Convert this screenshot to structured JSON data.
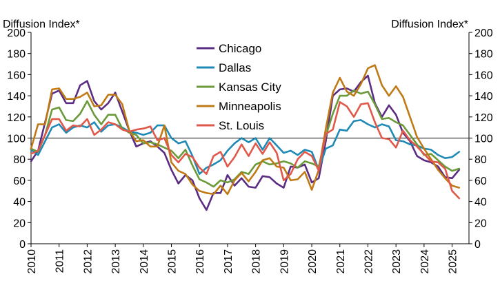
{
  "chart_data": {
    "type": "line",
    "title": "",
    "ylabel_left": "Diffusion Index*",
    "ylabel_right": "Diffusion Index*",
    "ylim": [
      0,
      200
    ],
    "yticks": [
      0,
      20,
      40,
      60,
      80,
      100,
      120,
      140,
      160,
      180,
      200
    ],
    "xlim": [
      2010,
      2025.6
    ],
    "xticks": [
      "2010",
      "2011",
      "2012",
      "2013",
      "2014",
      "2015",
      "2016",
      "2017",
      "2018",
      "2019",
      "2020",
      "2021",
      "2022",
      "2023",
      "2024",
      "2025"
    ],
    "reference_line": 100,
    "legend_position": "top-center",
    "series": [
      {
        "name": "Chicago",
        "color": "#5b2c83",
        "x": [
          2010.0,
          2010.25,
          2010.5,
          2010.75,
          2011.0,
          2011.25,
          2011.5,
          2011.75,
          2012.0,
          2012.25,
          2012.5,
          2012.75,
          2013.0,
          2013.25,
          2013.5,
          2013.75,
          2014.0,
          2014.25,
          2014.5,
          2014.75,
          2015.0,
          2015.25,
          2015.5,
          2015.75,
          2016.0,
          2016.25,
          2016.5,
          2016.75,
          2017.0,
          2017.25,
          2017.5,
          2017.75,
          2018.0,
          2018.25,
          2018.5,
          2018.75,
          2019.0,
          2019.25,
          2019.5,
          2019.75,
          2020.0,
          2020.25,
          2020.5,
          2020.75,
          2021.0,
          2021.25,
          2021.5,
          2021.75,
          2022.0,
          2022.25,
          2022.5,
          2022.75,
          2023.0,
          2023.25,
          2023.5,
          2023.75,
          2024.0,
          2024.25,
          2024.5,
          2024.75,
          2025.0,
          2025.25
        ],
        "values": [
          78,
          88,
          115,
          142,
          145,
          133,
          133,
          150,
          154,
          135,
          127,
          133,
          143,
          125,
          107,
          92,
          95,
          97,
          92,
          86,
          70,
          57,
          65,
          60,
          43,
          32,
          48,
          48,
          65,
          55,
          62,
          54,
          53,
          64,
          63,
          57,
          53,
          73,
          72,
          75,
          58,
          62,
          97,
          140,
          146,
          147,
          144,
          153,
          159,
          133,
          120,
          131,
          122,
          105,
          97,
          83,
          79,
          77,
          73,
          63,
          62,
          70
        ]
      },
      {
        "name": "Dallas",
        "color": "#1f8ab6",
        "x": [
          2010.0,
          2010.25,
          2010.5,
          2010.75,
          2011.0,
          2011.25,
          2011.5,
          2011.75,
          2012.0,
          2012.25,
          2012.5,
          2012.75,
          2013.0,
          2013.25,
          2013.5,
          2013.75,
          2014.0,
          2014.25,
          2014.5,
          2014.75,
          2015.0,
          2015.25,
          2015.5,
          2015.75,
          2016.0,
          2016.25,
          2016.5,
          2016.75,
          2017.0,
          2017.25,
          2017.5,
          2017.75,
          2018.0,
          2018.25,
          2018.5,
          2018.75,
          2019.0,
          2019.25,
          2019.5,
          2019.75,
          2020.0,
          2020.25,
          2020.5,
          2020.75,
          2021.0,
          2021.25,
          2021.5,
          2021.75,
          2022.0,
          2022.25,
          2022.5,
          2022.75,
          2023.0,
          2023.25,
          2023.5,
          2023.75,
          2024.0,
          2024.25,
          2024.5,
          2024.75,
          2025.0,
          2025.25
        ],
        "values": [
          89,
          84,
          97,
          110,
          113,
          105,
          110,
          112,
          110,
          115,
          106,
          112,
          113,
          110,
          106,
          105,
          103,
          105,
          112,
          112,
          100,
          95,
          97,
          83,
          66,
          72,
          75,
          79,
          88,
          95,
          100,
          96,
          100,
          89,
          100,
          93,
          86,
          88,
          84,
          89,
          87,
          70,
          90,
          93,
          108,
          107,
          116,
          117,
          113,
          110,
          113,
          111,
          98,
          97,
          94,
          93,
          90,
          89,
          84,
          81,
          82,
          87
        ]
      },
      {
        "name": "Kansas City",
        "color": "#6a9a3a",
        "x": [
          2010.0,
          2010.25,
          2010.5,
          2010.75,
          2011.0,
          2011.25,
          2011.5,
          2011.75,
          2012.0,
          2012.25,
          2012.5,
          2012.75,
          2013.0,
          2013.25,
          2013.5,
          2013.75,
          2014.0,
          2014.25,
          2014.5,
          2014.75,
          2015.0,
          2015.25,
          2015.5,
          2015.75,
          2016.0,
          2016.25,
          2016.5,
          2016.75,
          2017.0,
          2017.25,
          2017.5,
          2017.75,
          2018.0,
          2018.25,
          2018.5,
          2018.75,
          2019.0,
          2019.25,
          2019.5,
          2019.75,
          2020.0,
          2020.25,
          2020.5,
          2020.75,
          2021.0,
          2021.25,
          2021.5,
          2021.75,
          2022.0,
          2022.25,
          2022.5,
          2022.75,
          2023.0,
          2023.25,
          2023.5,
          2023.75,
          2024.0,
          2024.25,
          2024.5,
          2024.75,
          2025.0,
          2025.25
        ],
        "values": [
          90,
          87,
          103,
          127,
          129,
          117,
          116,
          123,
          135,
          122,
          113,
          122,
          122,
          109,
          105,
          103,
          95,
          96,
          94,
          91,
          88,
          81,
          89,
          74,
          61,
          58,
          54,
          60,
          58,
          61,
          68,
          66,
          75,
          78,
          75,
          76,
          78,
          76,
          72,
          78,
          76,
          73,
          102,
          123,
          140,
          140,
          145,
          142,
          144,
          132,
          118,
          119,
          115,
          112,
          103,
          94,
          84,
          85,
          79,
          73,
          69,
          71
        ]
      },
      {
        "name": "Minneapolis",
        "color": "#c07a15",
        "x": [
          2010.0,
          2010.25,
          2010.5,
          2010.75,
          2011.0,
          2011.25,
          2011.5,
          2011.75,
          2012.0,
          2012.25,
          2012.5,
          2012.75,
          2013.0,
          2013.25,
          2013.5,
          2013.75,
          2014.0,
          2014.25,
          2014.5,
          2014.75,
          2015.0,
          2015.25,
          2015.5,
          2015.75,
          2016.0,
          2016.25,
          2016.5,
          2016.75,
          2017.0,
          2017.25,
          2017.5,
          2017.75,
          2018.0,
          2018.25,
          2018.5,
          2018.75,
          2019.0,
          2019.25,
          2019.5,
          2019.75,
          2020.0,
          2020.25,
          2020.5,
          2020.75,
          2021.0,
          2021.25,
          2021.5,
          2021.75,
          2022.0,
          2022.25,
          2022.5,
          2022.75,
          2023.0,
          2023.25,
          2023.5,
          2023.75,
          2024.0,
          2024.25,
          2024.5,
          2024.75,
          2025.0,
          2025.25
        ],
        "values": [
          90,
          113,
          113,
          146,
          147,
          137,
          137,
          139,
          143,
          130,
          131,
          141,
          141,
          132,
          107,
          97,
          98,
          92,
          92,
          112,
          77,
          69,
          66,
          56,
          50,
          48,
          47,
          55,
          47,
          60,
          67,
          59,
          68,
          79,
          81,
          73,
          72,
          60,
          61,
          68,
          51,
          70,
          109,
          143,
          157,
          144,
          140,
          151,
          166,
          169,
          150,
          140,
          149,
          139,
          120,
          101,
          90,
          80,
          70,
          62,
          55,
          53
        ]
      },
      {
        "name": "St. Louis",
        "color": "#e0584a",
        "x": [
          2010.0,
          2010.25,
          2010.5,
          2010.75,
          2011.0,
          2011.25,
          2011.5,
          2011.75,
          2012.0,
          2012.25,
          2012.5,
          2012.75,
          2013.0,
          2013.25,
          2013.5,
          2013.75,
          2014.0,
          2014.25,
          2014.5,
          2014.75,
          2015.0,
          2015.25,
          2015.5,
          2015.75,
          2016.0,
          2016.25,
          2016.5,
          2016.75,
          2017.0,
          2017.25,
          2017.5,
          2017.75,
          2018.0,
          2018.25,
          2018.5,
          2018.75,
          2019.0,
          2019.25,
          2019.5,
          2019.75,
          2020.0,
          2020.25,
          2020.5,
          2020.75,
          2021.0,
          2021.25,
          2021.5,
          2021.75,
          2022.0,
          2022.25,
          2022.5,
          2022.75,
          2023.0,
          2023.25,
          2023.5,
          2023.75,
          2024.0,
          2024.25,
          2024.5,
          2024.75,
          2025.0,
          2025.25
        ],
        "values": [
          85,
          88,
          103,
          118,
          118,
          107,
          112,
          111,
          118,
          103,
          108,
          115,
          113,
          108,
          106,
          108,
          109,
          111,
          98,
          100,
          84,
          77,
          85,
          82,
          72,
          66,
          83,
          87,
          73,
          82,
          94,
          83,
          95,
          85,
          96,
          86,
          60,
          66,
          80,
          87,
          83,
          69,
          104,
          108,
          134,
          130,
          120,
          132,
          133,
          115,
          100,
          99,
          91,
          107,
          98,
          92,
          85,
          78,
          77,
          71,
          50,
          43
        ]
      }
    ]
  }
}
